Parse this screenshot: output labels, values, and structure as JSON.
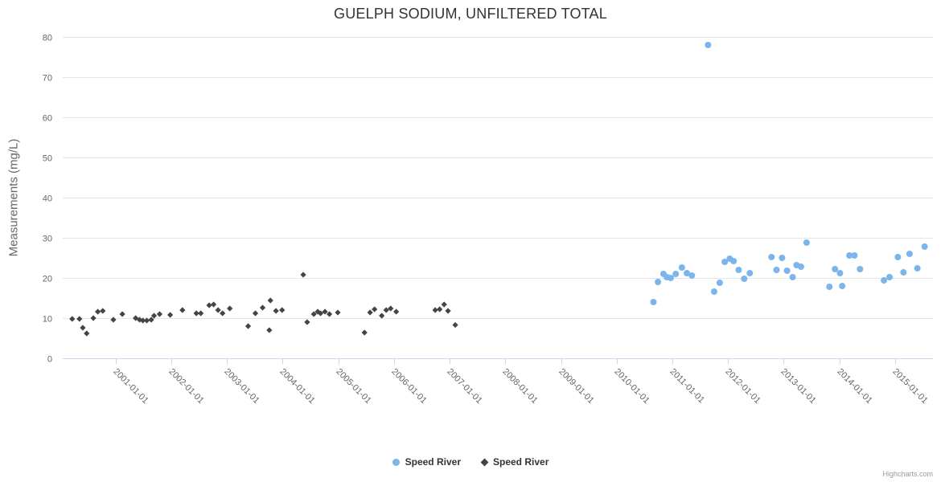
{
  "chart_data": {
    "type": "scatter",
    "title": "GUELPH SODIUM, UNFILTERED TOTAL",
    "ylabel": "Measurements (mg/L)",
    "ylim": [
      0,
      80
    ],
    "yticks": [
      0,
      10,
      20,
      30,
      40,
      50,
      60,
      70,
      80
    ],
    "xlim": [
      2000.05,
      2015.68
    ],
    "x_label_rotation": 45,
    "grid": "horizontal",
    "legend_position": "bottom-center",
    "credits": "Highcharts.com",
    "colors": {
      "blue_series": "#7cb5ec",
      "dark_series": "#434348",
      "grid": "#e6e6e6",
      "axis_line": "#ccd6eb",
      "axis_label": "#666666",
      "title": "#333333",
      "credits": "#999999"
    },
    "xticks": [
      {
        "value": 2001,
        "label": "2001-01-01"
      },
      {
        "value": 2002,
        "label": "2002-01-01"
      },
      {
        "value": 2003,
        "label": "2003-01-01"
      },
      {
        "value": 2004,
        "label": "2004-01-01"
      },
      {
        "value": 2005,
        "label": "2005-01-01"
      },
      {
        "value": 2006,
        "label": "2006-01-01"
      },
      {
        "value": 2007,
        "label": "2007-01-01"
      },
      {
        "value": 2008,
        "label": "2008-01-01"
      },
      {
        "value": 2009,
        "label": "2009-01-01"
      },
      {
        "value": 2010,
        "label": "2010-01-01"
      },
      {
        "value": 2011,
        "label": "2011-01-01"
      },
      {
        "value": 2012,
        "label": "2012-01-01"
      },
      {
        "value": 2013,
        "label": "2013-01-01"
      },
      {
        "value": 2014,
        "label": "2014-01-01"
      },
      {
        "value": 2015,
        "label": "2015-01-01"
      }
    ],
    "series": [
      {
        "name": "Speed River",
        "marker": "circle",
        "color": "#7cb5ec",
        "points": [
          [
            2010.66,
            14.0
          ],
          [
            2010.74,
            19.0
          ],
          [
            2010.84,
            21.0
          ],
          [
            2010.9,
            20.2
          ],
          [
            2010.97,
            20.0
          ],
          [
            2011.06,
            21.0
          ],
          [
            2011.17,
            22.6
          ],
          [
            2011.26,
            21.2
          ],
          [
            2011.35,
            20.6
          ],
          [
            2011.64,
            78.0
          ],
          [
            2011.75,
            16.6
          ],
          [
            2011.85,
            18.8
          ],
          [
            2011.94,
            24.0
          ],
          [
            2012.03,
            24.8
          ],
          [
            2012.1,
            24.2
          ],
          [
            2012.19,
            22.0
          ],
          [
            2012.29,
            19.8
          ],
          [
            2012.39,
            21.2
          ],
          [
            2012.78,
            25.2
          ],
          [
            2012.87,
            22.0
          ],
          [
            2012.97,
            25.0
          ],
          [
            2013.06,
            21.8
          ],
          [
            2013.16,
            20.2
          ],
          [
            2013.23,
            23.2
          ],
          [
            2013.31,
            22.8
          ],
          [
            2013.41,
            28.8
          ],
          [
            2013.82,
            17.8
          ],
          [
            2013.92,
            22.2
          ],
          [
            2014.01,
            21.2
          ],
          [
            2014.05,
            18.0
          ],
          [
            2014.18,
            25.6
          ],
          [
            2014.27,
            25.6
          ],
          [
            2014.37,
            22.2
          ],
          [
            2014.8,
            19.4
          ],
          [
            2014.9,
            20.2
          ],
          [
            2015.05,
            25.2
          ],
          [
            2015.15,
            21.4
          ],
          [
            2015.26,
            26.0
          ],
          [
            2015.4,
            22.4
          ],
          [
            2015.53,
            27.8
          ]
        ]
      },
      {
        "name": "Speed River",
        "marker": "diamond",
        "color": "#434348",
        "points": [
          [
            2000.22,
            9.8
          ],
          [
            2000.35,
            9.8
          ],
          [
            2000.41,
            7.6
          ],
          [
            2000.48,
            6.2
          ],
          [
            2000.6,
            10.0
          ],
          [
            2000.68,
            11.6
          ],
          [
            2000.77,
            11.8
          ],
          [
            2000.96,
            9.6
          ],
          [
            2001.12,
            11.0
          ],
          [
            2001.36,
            10.0
          ],
          [
            2001.43,
            9.6
          ],
          [
            2001.49,
            9.4
          ],
          [
            2001.56,
            9.4
          ],
          [
            2001.64,
            9.6
          ],
          [
            2001.69,
            10.6
          ],
          [
            2001.79,
            11.0
          ],
          [
            2001.98,
            10.8
          ],
          [
            2002.2,
            12.0
          ],
          [
            2002.45,
            11.2
          ],
          [
            2002.53,
            11.2
          ],
          [
            2002.68,
            13.2
          ],
          [
            2002.76,
            13.4
          ],
          [
            2002.84,
            12.0
          ],
          [
            2002.92,
            11.2
          ],
          [
            2003.05,
            12.4
          ],
          [
            2003.38,
            8.0
          ],
          [
            2003.51,
            11.2
          ],
          [
            2003.64,
            12.6
          ],
          [
            2003.76,
            7.0
          ],
          [
            2003.78,
            14.4
          ],
          [
            2003.88,
            11.8
          ],
          [
            2003.99,
            12.0
          ],
          [
            2004.37,
            20.8
          ],
          [
            2004.44,
            9.0
          ],
          [
            2004.56,
            11.0
          ],
          [
            2004.63,
            11.6
          ],
          [
            2004.68,
            11.2
          ],
          [
            2004.76,
            11.6
          ],
          [
            2004.84,
            11.0
          ],
          [
            2004.99,
            11.4
          ],
          [
            2005.47,
            6.4
          ],
          [
            2005.57,
            11.4
          ],
          [
            2005.65,
            12.2
          ],
          [
            2005.78,
            10.6
          ],
          [
            2005.86,
            12.0
          ],
          [
            2005.94,
            12.4
          ],
          [
            2006.04,
            11.6
          ],
          [
            2006.74,
            12.0
          ],
          [
            2006.82,
            12.2
          ],
          [
            2006.9,
            13.4
          ],
          [
            2006.97,
            11.8
          ],
          [
            2007.1,
            8.3
          ]
        ]
      }
    ]
  }
}
